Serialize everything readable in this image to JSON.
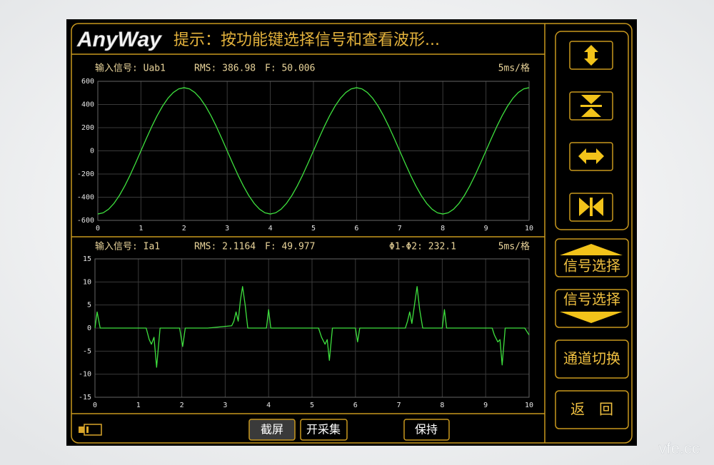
{
  "header": {
    "logo": "AnyWay",
    "hint": "提示：按功能键选择信号和查看波形..."
  },
  "chart_data": [
    {
      "type": "line",
      "annotations": [
        "输入信号: Uab1",
        "RMS: 386.98",
        "F: 50.006",
        "5ms/格"
      ],
      "color": "#3ee03e",
      "grid": true,
      "xlim": [
        0,
        10
      ],
      "xticks": [
        0,
        1,
        2,
        3,
        4,
        5,
        6,
        7,
        8,
        9,
        10
      ],
      "ylim": [
        -600,
        600
      ],
      "yticks": [
        600,
        400,
        200,
        0,
        -200,
        -400,
        -600
      ],
      "x": [
        0,
        0.125,
        0.25,
        0.375,
        0.5,
        0.625,
        0.75,
        0.875,
        1,
        1.125,
        1.25,
        1.375,
        1.5,
        1.625,
        1.75,
        1.875,
        2,
        2.125,
        2.25,
        2.375,
        2.5,
        2.625,
        2.75,
        2.875,
        3,
        3.125,
        3.25,
        3.375,
        3.5,
        3.625,
        3.75,
        3.875,
        4,
        4.125,
        4.25,
        4.375,
        4.5,
        4.625,
        4.75,
        4.875,
        5,
        5.125,
        5.25,
        5.375,
        5.5,
        5.625,
        5.75,
        5.875,
        6,
        6.125,
        6.25,
        6.375,
        6.5,
        6.625,
        6.75,
        6.875,
        7,
        7.125,
        7.25,
        7.375,
        7.5,
        7.625,
        7.75,
        7.875,
        8,
        8.125,
        8.25,
        8.375,
        8.5,
        8.625,
        8.75,
        8.875,
        9,
        9.125,
        9.25,
        9.375,
        9.5,
        9.625,
        9.75,
        9.875,
        10
      ],
      "values": [
        -545,
        -534.5,
        -503.5,
        -453.2,
        -385.4,
        -302.8,
        -208.6,
        -106.3,
        0,
        106.3,
        208.6,
        302.8,
        385.4,
        453.2,
        503.5,
        534.5,
        545,
        534.5,
        503.5,
        453.2,
        385.4,
        302.8,
        208.6,
        106.3,
        0,
        -106.3,
        -208.6,
        -302.8,
        -385.4,
        -453.2,
        -503.5,
        -534.5,
        -545,
        -534.5,
        -503.5,
        -453.2,
        -385.4,
        -302.8,
        -208.6,
        -106.3,
        0,
        106.3,
        208.6,
        302.8,
        385.4,
        453.2,
        503.5,
        534.5,
        545,
        534.5,
        503.5,
        453.2,
        385.4,
        302.8,
        208.6,
        106.3,
        0,
        -106.3,
        -208.6,
        -302.8,
        -385.4,
        -453.2,
        -503.5,
        -534.5,
        -545,
        -534.5,
        -503.5,
        -453.2,
        -385.4,
        -302.8,
        -208.6,
        -106.3,
        0,
        106.3,
        208.6,
        302.8,
        385.4,
        453.2,
        503.5,
        534.5,
        545
      ]
    },
    {
      "type": "line",
      "annotations": [
        "输入信号: Ia1",
        "RMS: 2.1164",
        "F: 49.977",
        "Φ1-Φ2: 232.1",
        "5ms/格"
      ],
      "color": "#3ee03e",
      "grid": true,
      "xlim": [
        0,
        10
      ],
      "xticks": [
        0,
        1,
        2,
        3,
        4,
        5,
        6,
        7,
        8,
        9,
        10
      ],
      "ylim": [
        -15,
        15
      ],
      "yticks": [
        15,
        10,
        5,
        0,
        -5,
        -10,
        -15
      ],
      "x": [
        0,
        0.05,
        0.12,
        0.5,
        1.0,
        1.18,
        1.25,
        1.3,
        1.36,
        1.42,
        1.5,
        1.95,
        2.02,
        2.08,
        2.6,
        3.15,
        3.2,
        3.25,
        3.3,
        3.35,
        3.4,
        3.46,
        3.52,
        3.95,
        4.0,
        4.05,
        4.6,
        5.15,
        5.22,
        5.3,
        5.35,
        5.4,
        5.47,
        6.0,
        6.05,
        6.1,
        6.7,
        7.15,
        7.2,
        7.25,
        7.3,
        7.36,
        7.42,
        7.48,
        7.55,
        8.0,
        8.05,
        8.1,
        8.7,
        9.15,
        9.2,
        9.28,
        9.33,
        9.38,
        9.45,
        9.9,
        10
      ],
      "values": [
        0,
        3.5,
        0,
        0,
        0,
        0,
        -2.5,
        -3.5,
        -2,
        -8.5,
        0,
        0,
        -4,
        0,
        0,
        0.5,
        1.5,
        3.5,
        1.5,
        6,
        9,
        5,
        0,
        0,
        4,
        0,
        0,
        0,
        -2,
        -3.5,
        -2.5,
        -7,
        0,
        0,
        -3,
        0,
        0,
        0,
        1.5,
        3.5,
        1,
        5,
        9,
        4,
        0,
        0,
        4,
        0,
        0,
        0,
        -1.5,
        -3,
        -2.5,
        -8,
        0,
        0,
        -1.5
      ]
    }
  ],
  "bottom_buttons": [
    "截屏",
    "开采集",
    "保持"
  ],
  "side_buttons": [
    "信号选择",
    "信号选择",
    "通道切换",
    "返　回"
  ],
  "watermark": "vfe.cc"
}
